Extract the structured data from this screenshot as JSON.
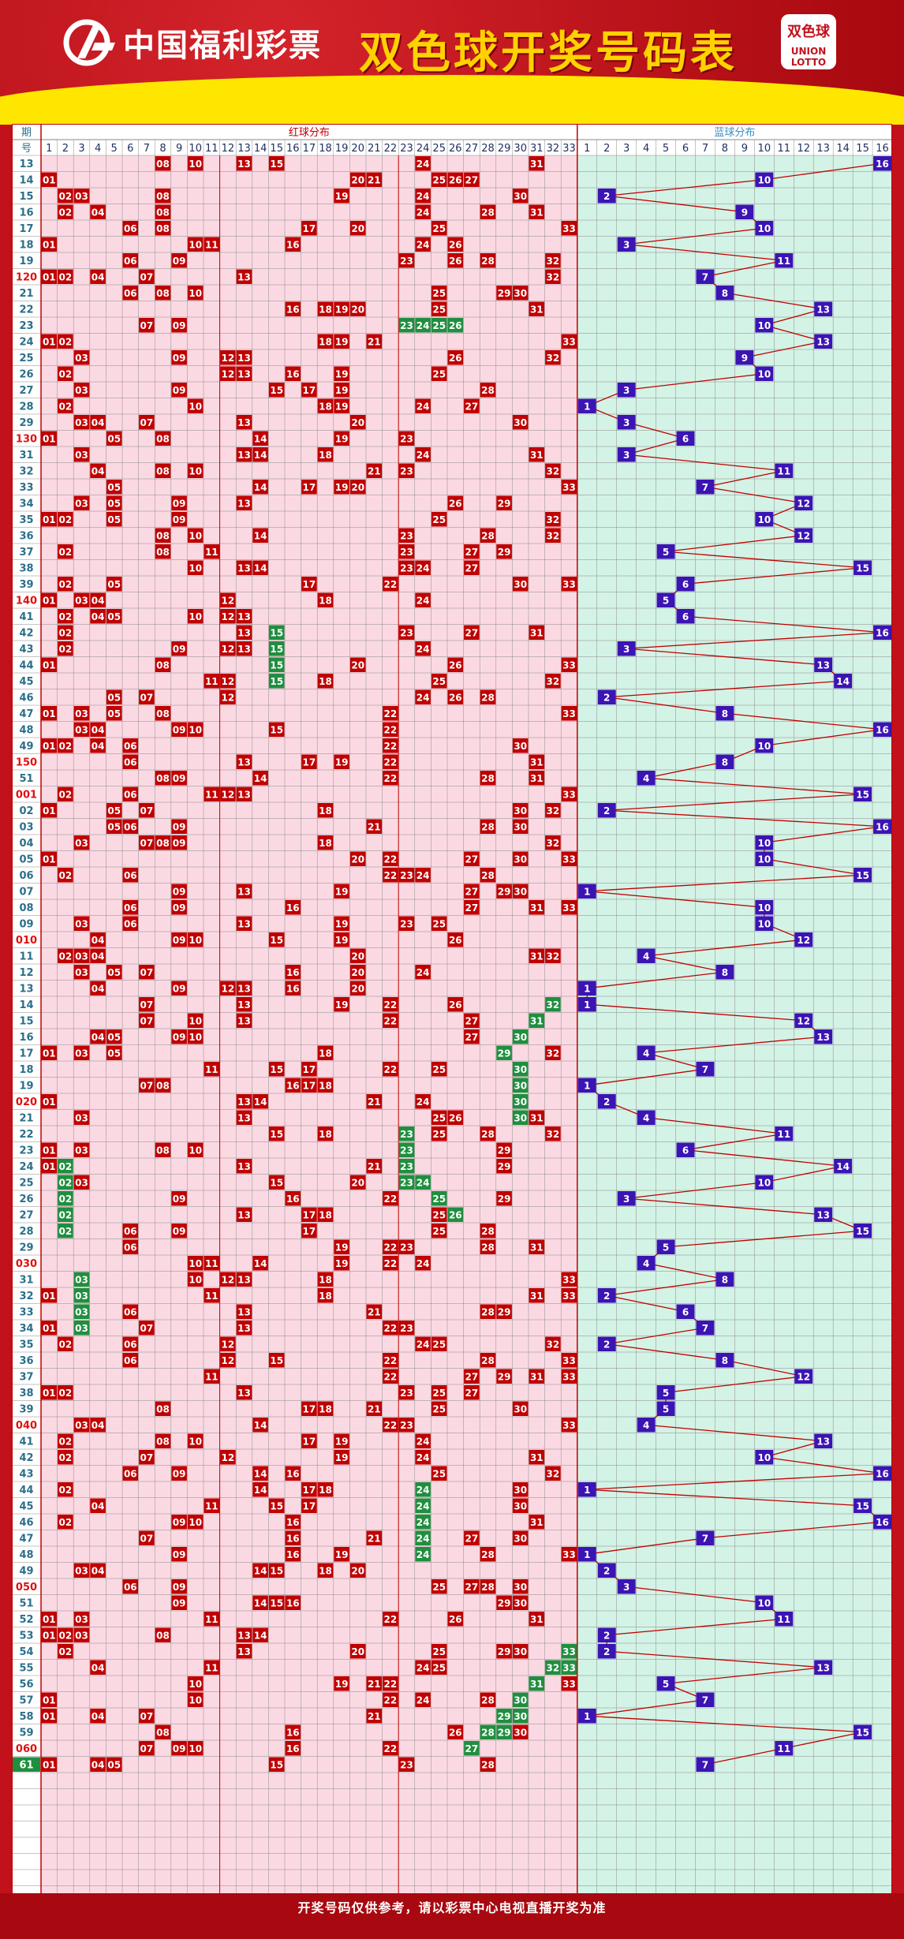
{
  "header": {
    "logo_text": "中国福利彩票",
    "title": "双色球开奖号码表",
    "badge_text": "双色球",
    "badge_sub": "UNION LOTTO"
  },
  "table": {
    "col_period_header": "期号",
    "red_section_title": "红球分布",
    "blue_section_title": "蓝球分布",
    "red_columns": 33,
    "blue_columns": 16
  },
  "footer": {
    "note": "开奖号码仅供参考，请以彩票中心电视直播开奖为准"
  },
  "colors": {
    "red_ball": "#c00000",
    "blue_ball": "#3b14b4",
    "repeat_ball": "#1f8f3f",
    "red_bg": "#fbd9e3",
    "blue_bg": "#d3f3e6",
    "grid": "#8a8a8a",
    "period_text": "#2a6f8a",
    "highlight_period": "#e01010"
  },
  "draws": [
    {
      "p": "13",
      "r": [
        8,
        10,
        13,
        15,
        24,
        31
      ],
      "b": 16
    },
    {
      "p": "14",
      "r": [
        1,
        20,
        21,
        25,
        26,
        27
      ],
      "b": 10
    },
    {
      "p": "15",
      "r": [
        2,
        3,
        8,
        19,
        24,
        30
      ],
      "b": 2
    },
    {
      "p": "16",
      "r": [
        2,
        4,
        8,
        24,
        28,
        31
      ],
      "b": 9
    },
    {
      "p": "17",
      "r": [
        6,
        8,
        17,
        20,
        25,
        33
      ],
      "b": 10
    },
    {
      "p": "18",
      "r": [
        1,
        10,
        11,
        16,
        24,
        26
      ],
      "b": 3
    },
    {
      "p": "19",
      "r": [
        6,
        9,
        23,
        26,
        28,
        32
      ],
      "b": 11
    },
    {
      "p": "120",
      "r": [
        1,
        2,
        4,
        7,
        13,
        32
      ],
      "b": 7
    },
    {
      "p": "21",
      "r": [
        6,
        8,
        10,
        25,
        29,
        30
      ],
      "b": 8
    },
    {
      "p": "22",
      "r": [
        16,
        18,
        19,
        20,
        25,
        31
      ],
      "b": 13
    },
    {
      "p": "23",
      "r": [
        7,
        9,
        23,
        24,
        25,
        26
      ],
      "b": 10,
      "g": [
        23,
        24,
        25,
        26
      ]
    },
    {
      "p": "24",
      "r": [
        1,
        2,
        18,
        19,
        21,
        33
      ],
      "b": 13
    },
    {
      "p": "25",
      "r": [
        3,
        9,
        12,
        13,
        26,
        32
      ],
      "b": 9
    },
    {
      "p": "26",
      "r": [
        2,
        12,
        13,
        16,
        19,
        25
      ],
      "b": 10
    },
    {
      "p": "27",
      "r": [
        3,
        9,
        15,
        17,
        19,
        28
      ],
      "b": 3
    },
    {
      "p": "28",
      "r": [
        2,
        10,
        18,
        19,
        24,
        27
      ],
      "b": 1
    },
    {
      "p": "29",
      "r": [
        3,
        4,
        7,
        13,
        20,
        30
      ],
      "b": 3
    },
    {
      "p": "130",
      "r": [
        1,
        5,
        8,
        14,
        19,
        23
      ],
      "b": 6
    },
    {
      "p": "31",
      "r": [
        3,
        13,
        14,
        18,
        24,
        31
      ],
      "b": 3
    },
    {
      "p": "32",
      "r": [
        4,
        8,
        10,
        21,
        23,
        32
      ],
      "b": 11
    },
    {
      "p": "33",
      "r": [
        5,
        14,
        17,
        19,
        20,
        33
      ],
      "b": 7
    },
    {
      "p": "34",
      "r": [
        3,
        5,
        9,
        13,
        26,
        29
      ],
      "b": 12
    },
    {
      "p": "35",
      "r": [
        1,
        2,
        5,
        9,
        25,
        32
      ],
      "b": 10
    },
    {
      "p": "36",
      "r": [
        8,
        10,
        14,
        23,
        28,
        32
      ],
      "b": 12
    },
    {
      "p": "37",
      "r": [
        2,
        8,
        11,
        23,
        27,
        29
      ],
      "b": 5
    },
    {
      "p": "38",
      "r": [
        10,
        13,
        14,
        23,
        24,
        27
      ],
      "b": 15
    },
    {
      "p": "39",
      "r": [
        2,
        5,
        17,
        22,
        30,
        33
      ],
      "b": 6
    },
    {
      "p": "140",
      "r": [
        1,
        3,
        4,
        12,
        18,
        24
      ],
      "b": 5
    },
    {
      "p": "41",
      "r": [
        2,
        4,
        5,
        10,
        12,
        13
      ],
      "b": 6
    },
    {
      "p": "42",
      "r": [
        2,
        13,
        15,
        23,
        27,
        31
      ],
      "b": 16,
      "g": [
        15
      ]
    },
    {
      "p": "43",
      "r": [
        2,
        9,
        12,
        13,
        15,
        24
      ],
      "b": 3,
      "g": [
        15
      ]
    },
    {
      "p": "44",
      "r": [
        1,
        8,
        15,
        20,
        26,
        33
      ],
      "b": 13,
      "g": [
        15
      ]
    },
    {
      "p": "45",
      "r": [
        11,
        12,
        15,
        18,
        25,
        32
      ],
      "b": 14,
      "g": [
        15
      ]
    },
    {
      "p": "46",
      "r": [
        5,
        7,
        12,
        24,
        26,
        28
      ],
      "b": 2
    },
    {
      "p": "47",
      "r": [
        1,
        3,
        5,
        8,
        22,
        33
      ],
      "b": 8
    },
    {
      "p": "48",
      "r": [
        3,
        4,
        9,
        10,
        15,
        22
      ],
      "b": 16
    },
    {
      "p": "49",
      "r": [
        1,
        2,
        4,
        6,
        22,
        30
      ],
      "b": 10
    },
    {
      "p": "150",
      "r": [
        6,
        13,
        17,
        19,
        22,
        31
      ],
      "b": 8
    },
    {
      "p": "51",
      "r": [
        8,
        9,
        14,
        22,
        28,
        31
      ],
      "b": 4
    },
    {
      "p": "001",
      "r": [
        2,
        6,
        11,
        12,
        13,
        33
      ],
      "b": 15
    },
    {
      "p": "02",
      "r": [
        1,
        5,
        7,
        18,
        30,
        32
      ],
      "b": 2
    },
    {
      "p": "03",
      "r": [
        5,
        6,
        9,
        21,
        28,
        30
      ],
      "b": 16
    },
    {
      "p": "04",
      "r": [
        3,
        7,
        8,
        9,
        18,
        32
      ],
      "b": 10
    },
    {
      "p": "05",
      "r": [
        1,
        20,
        22,
        27,
        30,
        33
      ],
      "b": 10
    },
    {
      "p": "06",
      "r": [
        2,
        6,
        22,
        23,
        24,
        28
      ],
      "b": 15
    },
    {
      "p": "07",
      "r": [
        9,
        13,
        19,
        27,
        29,
        30
      ],
      "b": 1
    },
    {
      "p": "08",
      "r": [
        6,
        9,
        16,
        27,
        31,
        33
      ],
      "b": 10
    },
    {
      "p": "09",
      "r": [
        3,
        6,
        13,
        19,
        23,
        25
      ],
      "b": 10
    },
    {
      "p": "010",
      "r": [
        4,
        9,
        10,
        15,
        19,
        26
      ],
      "b": 12
    },
    {
      "p": "11",
      "r": [
        2,
        3,
        4,
        20,
        31,
        32
      ],
      "b": 4
    },
    {
      "p": "12",
      "r": [
        3,
        5,
        7,
        16,
        20,
        24
      ],
      "b": 8
    },
    {
      "p": "13",
      "r": [
        4,
        9,
        12,
        13,
        16,
        20
      ],
      "b": 1
    },
    {
      "p": "14",
      "r": [
        7,
        13,
        19,
        22,
        26,
        32
      ],
      "b": 1,
      "g": [
        32
      ]
    },
    {
      "p": "15",
      "r": [
        7,
        10,
        13,
        22,
        27,
        31
      ],
      "b": 12,
      "g": [
        31
      ]
    },
    {
      "p": "16",
      "r": [
        4,
        5,
        9,
        10,
        27,
        30
      ],
      "b": 13,
      "g": [
        30
      ]
    },
    {
      "p": "17",
      "r": [
        1,
        3,
        5,
        18,
        29,
        32
      ],
      "b": 4,
      "g": [
        29
      ]
    },
    {
      "p": "18",
      "r": [
        11,
        15,
        17,
        22,
        25,
        30
      ],
      "b": 7,
      "g": [
        30
      ]
    },
    {
      "p": "19",
      "r": [
        7,
        8,
        16,
        17,
        18,
        30
      ],
      "b": 1,
      "g": [
        30
      ]
    },
    {
      "p": "020",
      "r": [
        1,
        13,
        14,
        21,
        24,
        30
      ],
      "b": 2,
      "g": [
        30
      ]
    },
    {
      "p": "21",
      "r": [
        3,
        13,
        25,
        26,
        30,
        31
      ],
      "b": 4,
      "g": [
        30
      ]
    },
    {
      "p": "22",
      "r": [
        15,
        18,
        23,
        25,
        28,
        32
      ],
      "b": 11,
      "g": [
        23
      ]
    },
    {
      "p": "23",
      "r": [
        1,
        3,
        8,
        10,
        23,
        29
      ],
      "b": 6,
      "g": [
        23
      ]
    },
    {
      "p": "24",
      "r": [
        1,
        2,
        13,
        21,
        23,
        29
      ],
      "b": 14,
      "g": [
        2,
        23
      ]
    },
    {
      "p": "25",
      "r": [
        2,
        3,
        15,
        20,
        23,
        24
      ],
      "b": 10,
      "g": [
        2,
        23,
        24
      ]
    },
    {
      "p": "26",
      "r": [
        2,
        9,
        16,
        22,
        25,
        29
      ],
      "b": 3,
      "g": [
        2,
        25
      ]
    },
    {
      "p": "27",
      "r": [
        2,
        13,
        17,
        18,
        25,
        26
      ],
      "b": 13,
      "g": [
        2,
        26
      ]
    },
    {
      "p": "28",
      "r": [
        2,
        6,
        9,
        17,
        25,
        28
      ],
      "b": 15,
      "g": [
        2
      ]
    },
    {
      "p": "29",
      "r": [
        6,
        19,
        22,
        23,
        28,
        31
      ],
      "b": 5
    },
    {
      "p": "030",
      "r": [
        10,
        11,
        14,
        19,
        22,
        24
      ],
      "b": 4
    },
    {
      "p": "31",
      "r": [
        3,
        10,
        12,
        13,
        18,
        33
      ],
      "b": 8,
      "g": [
        3
      ]
    },
    {
      "p": "32",
      "r": [
        1,
        3,
        11,
        18,
        31,
        33
      ],
      "b": 2,
      "g": [
        3
      ]
    },
    {
      "p": "33",
      "r": [
        3,
        6,
        13,
        21,
        28,
        29
      ],
      "b": 6,
      "g": [
        3
      ]
    },
    {
      "p": "34",
      "r": [
        1,
        3,
        7,
        13,
        22,
        23
      ],
      "b": 7,
      "g": [
        3
      ]
    },
    {
      "p": "35",
      "r": [
        2,
        6,
        12,
        24,
        25,
        32
      ],
      "b": 2
    },
    {
      "p": "36",
      "r": [
        6,
        12,
        15,
        22,
        28,
        33
      ],
      "b": 8
    },
    {
      "p": "37",
      "r": [
        11,
        22,
        27,
        29,
        31,
        33
      ],
      "b": 12
    },
    {
      "p": "38",
      "r": [
        1,
        2,
        13,
        23,
        25,
        27
      ],
      "b": 5
    },
    {
      "p": "39",
      "r": [
        8,
        17,
        18,
        21,
        25,
        30
      ],
      "b": 5
    },
    {
      "p": "040",
      "r": [
        3,
        4,
        14,
        22,
        23,
        33
      ],
      "b": 4
    },
    {
      "p": "41",
      "r": [
        2,
        8,
        10,
        17,
        19,
        24
      ],
      "b": 13
    },
    {
      "p": "42",
      "r": [
        2,
        7,
        12,
        19,
        24,
        31
      ],
      "b": 10
    },
    {
      "p": "43",
      "r": [
        6,
        9,
        14,
        16,
        25,
        32
      ],
      "b": 16
    },
    {
      "p": "44",
      "r": [
        2,
        14,
        17,
        18,
        24,
        30
      ],
      "b": 1,
      "g": [
        24
      ]
    },
    {
      "p": "45",
      "r": [
        4,
        11,
        15,
        17,
        24,
        30
      ],
      "b": 15,
      "g": [
        24
      ]
    },
    {
      "p": "46",
      "r": [
        2,
        9,
        10,
        16,
        24,
        31
      ],
      "b": 16,
      "g": [
        24
      ]
    },
    {
      "p": "47",
      "r": [
        7,
        16,
        21,
        24,
        27,
        30
      ],
      "b": 7,
      "g": [
        24
      ]
    },
    {
      "p": "48",
      "r": [
        9,
        16,
        19,
        24,
        28,
        33
      ],
      "b": 1,
      "g": [
        24
      ]
    },
    {
      "p": "49",
      "r": [
        3,
        4,
        14,
        15,
        18,
        20
      ],
      "b": 2
    },
    {
      "p": "050",
      "r": [
        6,
        9,
        25,
        27,
        28,
        30
      ],
      "b": 3
    },
    {
      "p": "51",
      "r": [
        9,
        14,
        15,
        16,
        29,
        30
      ],
      "b": 10
    },
    {
      "p": "52",
      "r": [
        1,
        3,
        11,
        22,
        26,
        31
      ],
      "b": 11
    },
    {
      "p": "53",
      "r": [
        1,
        2,
        3,
        8,
        13,
        14
      ],
      "b": 2
    },
    {
      "p": "54",
      "r": [
        2,
        13,
        20,
        25,
        29,
        30,
        33
      ],
      "b": 2,
      "g": [
        33
      ]
    },
    {
      "p": "55",
      "r": [
        4,
        11,
        24,
        25,
        32,
        33
      ],
      "b": 13,
      "g": [
        32,
        33
      ]
    },
    {
      "p": "56",
      "r": [
        10,
        19,
        21,
        22,
        31,
        33
      ],
      "b": 5,
      "g": [
        31
      ]
    },
    {
      "p": "57",
      "r": [
        1,
        10,
        22,
        24,
        28,
        30
      ],
      "b": 7,
      "g": [
        30
      ]
    },
    {
      "p": "58",
      "r": [
        1,
        4,
        7,
        21,
        29,
        30
      ],
      "b": 1,
      "g": [
        29,
        30
      ]
    },
    {
      "p": "59",
      "r": [
        8,
        16,
        26,
        28,
        29,
        30
      ],
      "b": 15,
      "g": [
        28,
        29
      ]
    },
    {
      "p": "060",
      "r": [
        7,
        9,
        10,
        16,
        22,
        27
      ],
      "b": 11,
      "g": [
        27
      ]
    },
    {
      "p": "61",
      "r": [
        1,
        4,
        5,
        15,
        23,
        28
      ],
      "b": 7
    }
  ]
}
